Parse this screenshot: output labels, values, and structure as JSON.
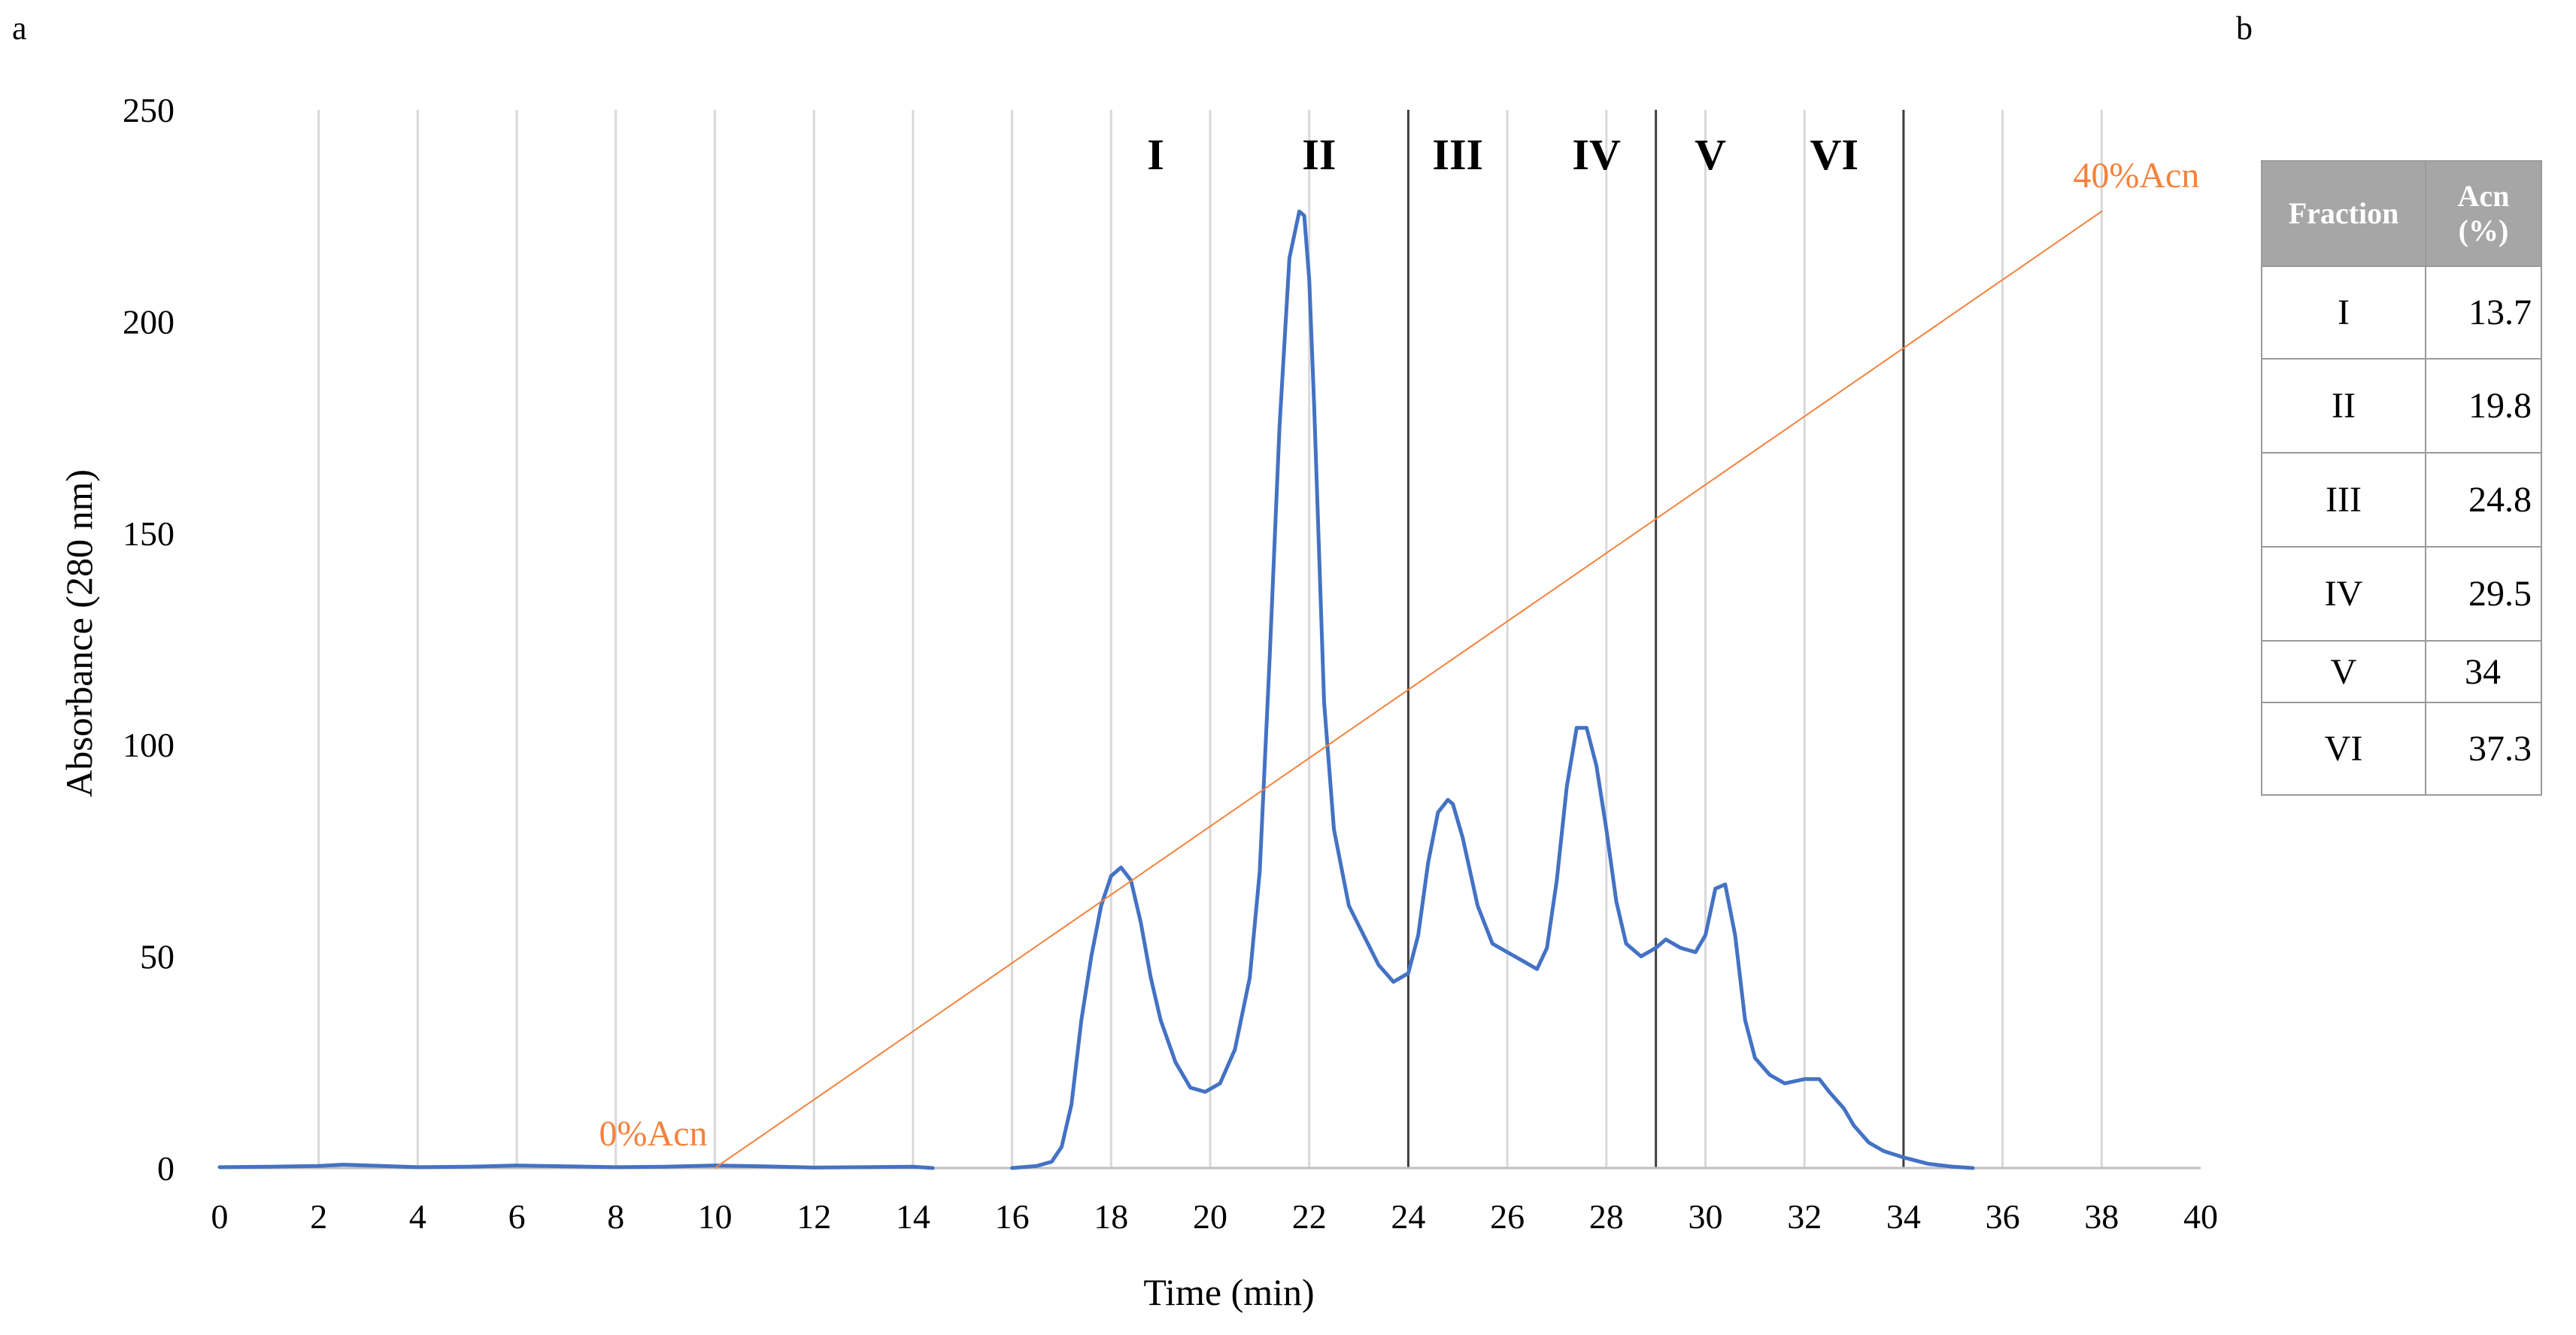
{
  "panel_labels": {
    "a": "a",
    "b": "b"
  },
  "chart_data": {
    "type": "line",
    "xlabel": "Time (min)",
    "ylabel": "Absorbance (280 nm)",
    "xlim": [
      0,
      40
    ],
    "ylim": [
      0,
      250
    ],
    "x_ticks": [
      0,
      2,
      4,
      6,
      8,
      10,
      12,
      14,
      16,
      18,
      20,
      22,
      24,
      26,
      28,
      30,
      32,
      34,
      36,
      38,
      40
    ],
    "y_ticks": [
      0,
      50,
      100,
      150,
      200,
      250
    ],
    "grid": {
      "vertical": true,
      "horizontal": false
    },
    "colors": {
      "trace": "#4472c4",
      "gradient": "#f4823c",
      "grid": "#d9d9d9",
      "boundary": "#404040"
    },
    "fraction_boundaries": [
      24,
      29,
      34
    ],
    "fraction_labels": [
      {
        "text": "I",
        "x": 18.9
      },
      {
        "text": "II",
        "x": 22.2
      },
      {
        "text": "III",
        "x": 25
      },
      {
        "text": "IV",
        "x": 27.8
      },
      {
        "text": "V",
        "x": 30.1
      },
      {
        "text": "VI",
        "x": 32.6
      }
    ],
    "series": [
      {
        "x": [
          0,
          1,
          2,
          2.5,
          3,
          4,
          5,
          6,
          7,
          8,
          9,
          10,
          11,
          12,
          13,
          14,
          14.4
        ],
        "y": [
          0.2,
          0.3,
          0.5,
          0.8,
          0.6,
          0.2,
          0.3,
          0.6,
          0.4,
          0.2,
          0.3,
          0.6,
          0.4,
          0.1,
          0.2,
          0.3,
          0
        ]
      },
      {
        "x": [
          16,
          16.5,
          16.8,
          17,
          17.2,
          17.4,
          17.6,
          17.8,
          18,
          18.2,
          18.4,
          18.6,
          18.8,
          19,
          19.3,
          19.6,
          19.9,
          20.2,
          20.5,
          20.8,
          21,
          21.2,
          21.4,
          21.6,
          21.8,
          21.9,
          22,
          22.1,
          22.3,
          22.5,
          22.8,
          23.1,
          23.4,
          23.7,
          24,
          24.2,
          24.4,
          24.6,
          24.8,
          24.9,
          25.1,
          25.4,
          25.7,
          26,
          26.3,
          26.6,
          26.8,
          27,
          27.2,
          27.4,
          27.6,
          27.8,
          28,
          28.2,
          28.4,
          28.7,
          29,
          29.2,
          29.5,
          29.8,
          30,
          30.2,
          30.4,
          30.6,
          30.8,
          31,
          31.3,
          31.6,
          32,
          32.3,
          32.5,
          32.8,
          33,
          33.3,
          33.6,
          34,
          34.5,
          35,
          35.4
        ],
        "y": [
          0,
          0.5,
          1.5,
          5,
          15,
          35,
          50,
          62,
          69,
          71,
          68,
          58,
          45,
          35,
          25,
          19,
          18,
          20,
          28,
          45,
          70,
          120,
          175,
          215,
          226,
          225,
          210,
          180,
          110,
          80,
          62,
          55,
          48,
          44,
          46,
          55,
          72,
          84,
          87,
          86,
          78,
          62,
          53,
          51,
          49,
          47,
          52,
          68,
          90,
          104,
          104,
          95,
          80,
          63,
          53,
          50,
          52,
          54,
          52,
          51,
          55,
          66,
          67,
          55,
          35,
          26,
          22,
          20,
          21,
          21,
          18,
          14,
          10,
          6,
          4,
          2.5,
          1,
          0.3,
          0
        ]
      },
      {
        "name": "gradient",
        "x": [
          10,
          38
        ],
        "y": [
          0,
          226
        ]
      }
    ],
    "annotations": [
      {
        "text": "0%Acn",
        "x": 10,
        "y": 0
      },
      {
        "text": "40%Acn",
        "x": 38,
        "y": 226
      }
    ]
  },
  "table": {
    "headers": [
      "Fraction",
      "Acn (%)"
    ],
    "rows": [
      [
        "I",
        "13.7"
      ],
      [
        "II",
        "19.8"
      ],
      [
        "III",
        "24.8"
      ],
      [
        "IV",
        "29.5"
      ],
      [
        "V",
        "34"
      ],
      [
        "VI",
        "37.3"
      ]
    ]
  }
}
